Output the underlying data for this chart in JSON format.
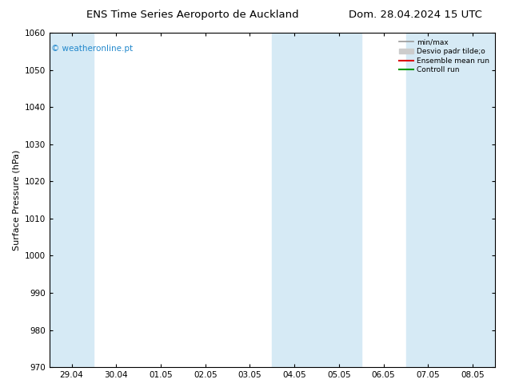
{
  "title_left": "ENS Time Series Aeroporto de Auckland",
  "title_right": "Dom. 28.04.2024 15 UTC",
  "ylabel": "Surface Pressure (hPa)",
  "ylim": [
    970,
    1060
  ],
  "yticks": [
    970,
    980,
    990,
    1000,
    1010,
    1020,
    1030,
    1040,
    1050,
    1060
  ],
  "xlabels": [
    "29.04",
    "30.04",
    "01.05",
    "02.05",
    "03.05",
    "04.05",
    "05.05",
    "06.05",
    "07.05",
    "08.05"
  ],
  "x_positions": [
    0,
    1,
    2,
    3,
    4,
    5,
    6,
    7,
    8,
    9
  ],
  "xlim": [
    -0.5,
    9.5
  ],
  "shaded_bands": [
    {
      "x_start": -0.5,
      "x_end": 0.5,
      "color": "#d6eaf5"
    },
    {
      "x_start": 4.5,
      "x_end": 6.5,
      "color": "#d6eaf5"
    },
    {
      "x_start": 7.5,
      "x_end": 9.5,
      "color": "#d6eaf5"
    }
  ],
  "watermark_text": "© weatheronline.pt",
  "watermark_color": "#2288cc",
  "legend_labels": [
    "min/max",
    "Desvio padr tilde;o",
    "Ensemble mean run",
    "Controll run"
  ],
  "legend_colors": [
    "#999999",
    "#cccccc",
    "#dd0000",
    "#009900"
  ],
  "legend_linewidths": [
    1.2,
    6,
    1.5,
    1.5
  ],
  "bg_color": "#ffffff",
  "plot_bg_color": "#ffffff",
  "title_fontsize": 9.5,
  "tick_fontsize": 7.5,
  "ylabel_fontsize": 8
}
